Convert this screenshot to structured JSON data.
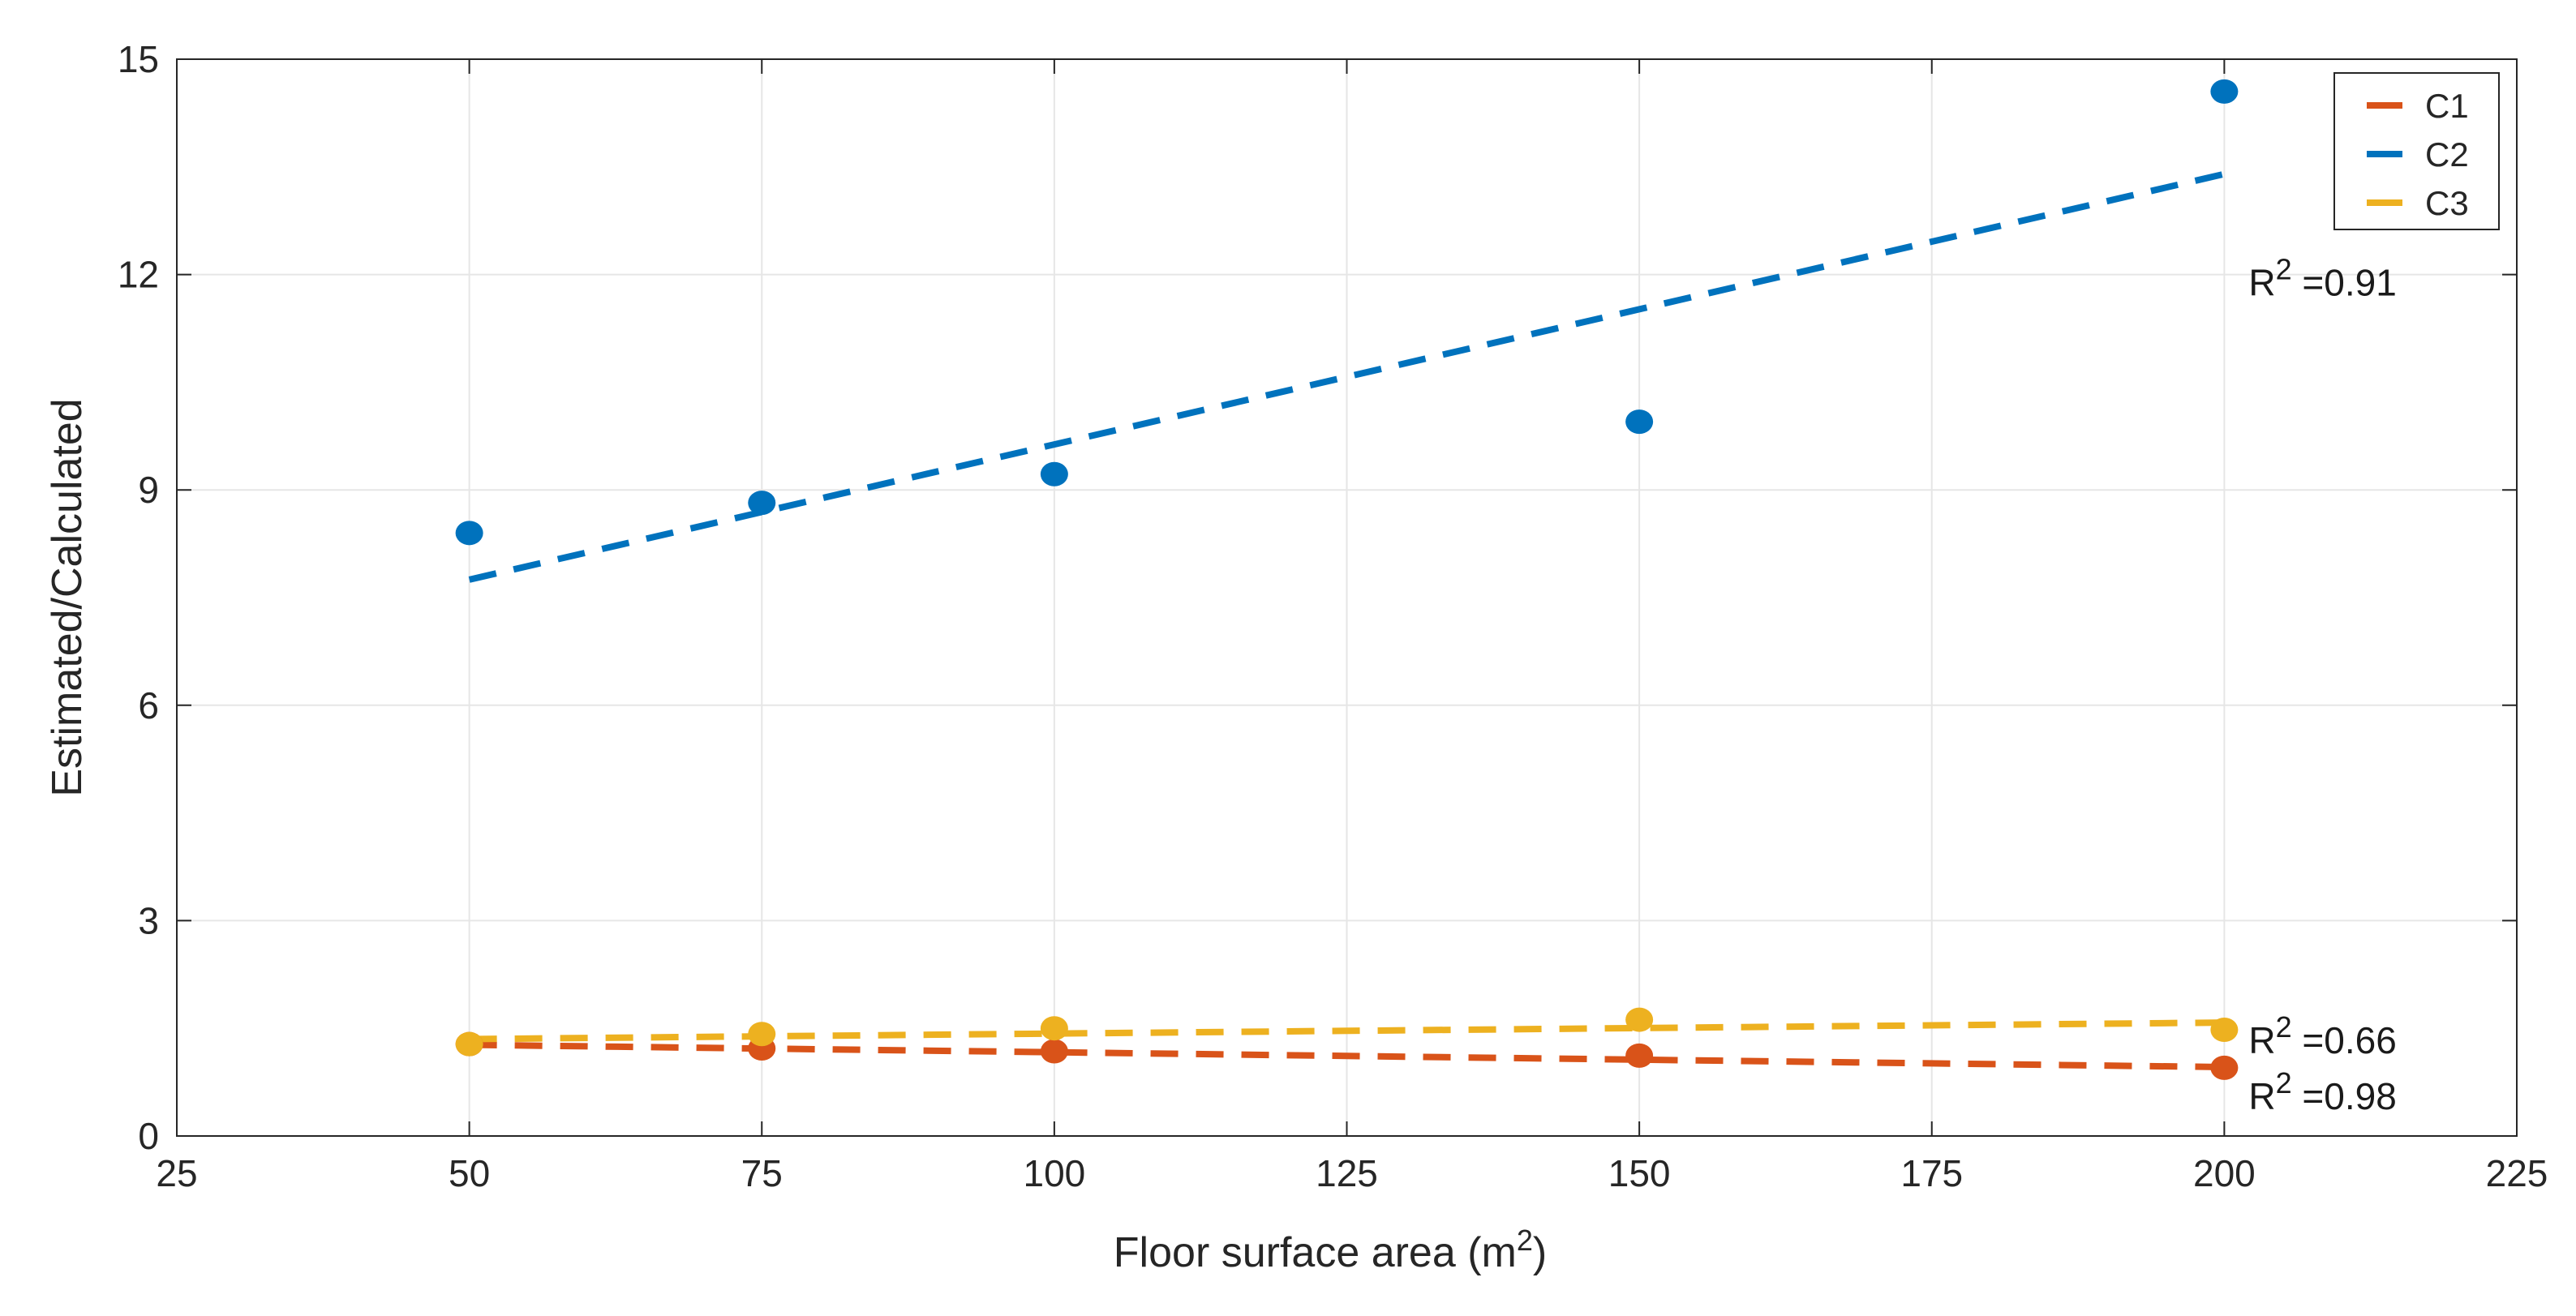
{
  "chart_data": {
    "type": "scatter",
    "title": "",
    "xlabel": "Floor surface area (m",
    "xlabel_sup": "2",
    "xlabel_suffix": ")",
    "ylabel": "Estimated/Calculated",
    "xlim": [
      25,
      225
    ],
    "ylim": [
      0,
      15
    ],
    "xticks": [
      25,
      50,
      75,
      100,
      125,
      150,
      175,
      200,
      225
    ],
    "yticks": [
      0,
      3,
      6,
      9,
      12,
      15
    ],
    "grid": true,
    "legend_position": "top-right",
    "series": [
      {
        "name": "C1",
        "color": "#D95319",
        "x": [
          50,
          75,
          100,
          150,
          200
        ],
        "y": [
          1.28,
          1.22,
          1.18,
          1.12,
          0.95
        ],
        "fit": {
          "x": [
            50,
            200
          ],
          "y": [
            1.27,
            0.96
          ]
        },
        "r2_text": "R",
        "r2_sup": "2",
        "r2_value": " =0.98"
      },
      {
        "name": "C2",
        "color": "#0072BD",
        "x": [
          50,
          75,
          100,
          150,
          200
        ],
        "y": [
          8.4,
          8.82,
          9.22,
          9.95,
          14.55
        ],
        "fit": {
          "x": [
            50,
            200
          ],
          "y": [
            7.75,
            13.4
          ]
        },
        "r2_text": "R",
        "r2_sup": "2",
        "r2_value": " =0.91"
      },
      {
        "name": "C3",
        "color": "#EDB120",
        "x": [
          50,
          75,
          100,
          150,
          200
        ],
        "y": [
          1.28,
          1.42,
          1.5,
          1.62,
          1.48
        ],
        "fit": {
          "x": [
            50,
            200
          ],
          "y": [
            1.35,
            1.58
          ]
        },
        "r2_text": "R",
        "r2_sup": "2",
        "r2_value": " =0.66"
      }
    ]
  }
}
